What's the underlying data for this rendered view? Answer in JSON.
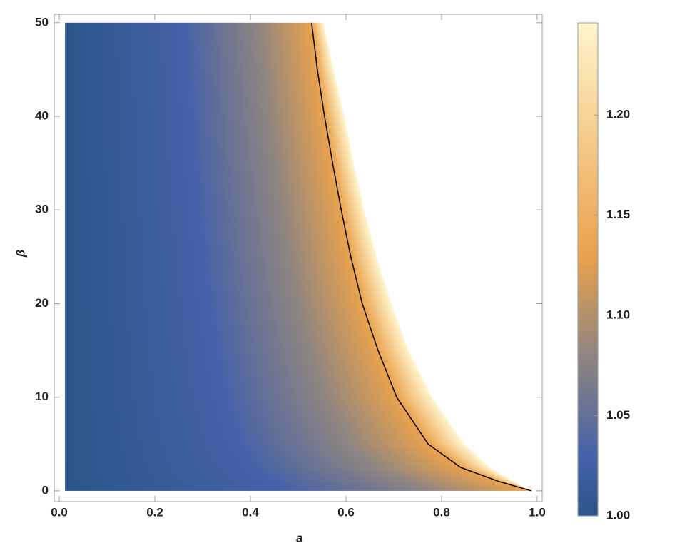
{
  "chart_data": {
    "type": "density",
    "xlabel": "a",
    "ylabel": "β",
    "xlim": [
      -0.0105,
      1.0105
    ],
    "ylim": [
      -1.15,
      50.9
    ],
    "xticks": [
      {
        "value": 0,
        "label": "0.0"
      },
      {
        "value": 0.2,
        "label": "0.2"
      },
      {
        "value": 0.4,
        "label": "0.4"
      },
      {
        "value": 0.6,
        "label": "0.6"
      },
      {
        "value": 0.8,
        "label": "0.8"
      },
      {
        "value": 1,
        "label": "1.0"
      }
    ],
    "yticks": [
      0,
      10,
      20,
      30,
      40,
      50
    ],
    "x_start": 0.012,
    "region_edge": {
      "x": [
        0.99,
        0.95,
        0.9,
        0.846,
        0.779,
        0.73,
        0.694,
        0.663,
        0.637,
        0.615,
        0.596,
        0.573,
        0.552
      ],
      "y": [
        0,
        1,
        2.5,
        5,
        10,
        15,
        20,
        25,
        30,
        35,
        40,
        45,
        50
      ]
    },
    "contour": {
      "color": "#000000",
      "x": [
        0.988,
        0.92,
        0.84,
        0.772,
        0.706,
        0.667,
        0.634,
        0.61,
        0.59,
        0.572,
        0.555,
        0.54,
        0.528
      ],
      "y": [
        0,
        1,
        2.5,
        5,
        10,
        15,
        20,
        25,
        30,
        35,
        40,
        45,
        50
      ]
    },
    "colorbar": {
      "lim": [
        1.0,
        1.246
      ],
      "ticks": [
        {
          "value": 1.0,
          "label": "1.00"
        },
        {
          "value": 1.05,
          "label": "1.05"
        },
        {
          "value": 1.1,
          "label": "1.10"
        },
        {
          "value": 1.15,
          "label": "1.15"
        },
        {
          "value": 1.2,
          "label": "1.20"
        }
      ],
      "scale": [
        {
          "value": 1.0,
          "color": "#2b5588"
        },
        {
          "value": 1.03,
          "color": "#4562a8"
        },
        {
          "value": 1.08,
          "color": "#8f8580"
        },
        {
          "value": 1.13,
          "color": "#e9a24c"
        },
        {
          "value": 1.246,
          "color": "#fff4cc"
        }
      ]
    }
  }
}
